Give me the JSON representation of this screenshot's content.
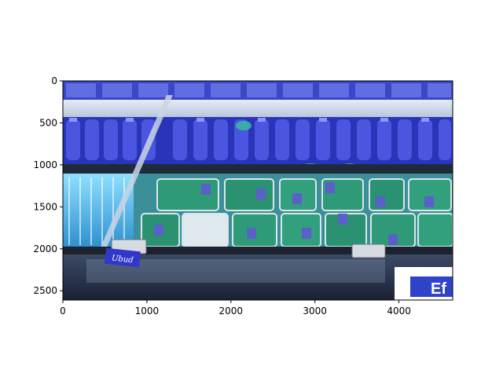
{
  "axes": {
    "x_ticks": [
      "0",
      "1000",
      "2000",
      "3000",
      "4000"
    ],
    "y_ticks": [
      "0",
      "500",
      "1000",
      "1500",
      "2000",
      "2500"
    ],
    "xlim": [
      0,
      4640
    ],
    "ylim": [
      2610,
      0
    ],
    "x_tick_values": [
      0,
      1000,
      2000,
      3000,
      4000
    ],
    "y_tick_values": [
      0,
      500,
      1000,
      1500,
      2000,
      2500
    ]
  },
  "photo": {
    "subject": "refrigerated supermarket display case with packaged produce",
    "sign_text": "Ef",
    "tag_text": "Ubud"
  },
  "colors": {
    "shelf_blue": "#3a44c8",
    "produce_green": "#2fa07a",
    "water_cyan": "#5fc8f0",
    "rail_dark": "#20242c",
    "glass_light": "#c8d4e8"
  }
}
